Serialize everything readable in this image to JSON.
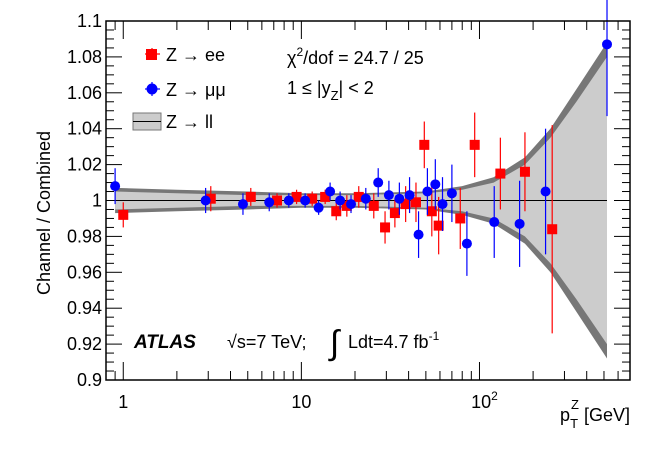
{
  "chart_data": {
    "type": "scatter",
    "title": "",
    "xlabel": "p_T^Z [GeV]",
    "xlabel_parts": {
      "base": "p",
      "sub": "T",
      "sup": "Z",
      "unit": "[GeV]"
    },
    "ylabel": "Channel / Combined",
    "xscale": "log",
    "xlim": [
      0.8,
      700
    ],
    "ylim": [
      0.9,
      1.1
    ],
    "yticks": [
      0.9,
      0.92,
      0.94,
      0.96,
      0.98,
      1,
      1.02,
      1.04,
      1.06,
      1.08,
      1.1
    ],
    "ytick_labels": [
      "0.9",
      "0.92",
      "0.94",
      "0.96",
      "0.98",
      "1",
      "1.02",
      "1.04",
      "1.06",
      "1.08",
      "1.1"
    ],
    "xticks_major": [
      1,
      10,
      100
    ],
    "xtick_labels": [
      "1",
      "10",
      "10"
    ],
    "xtick_label_exponents": [
      "",
      "",
      "2"
    ],
    "xticks_minor": [
      0.9,
      2,
      3,
      4,
      5,
      6,
      7,
      8,
      9,
      20,
      30,
      40,
      50,
      60,
      70,
      80,
      90,
      200,
      300,
      400,
      500,
      600
    ],
    "series": [
      {
        "name": "Z → ee",
        "marker": "square",
        "color": "#ff0000",
        "points": [
          {
            "x": 1.0,
            "y": 0.992,
            "err": 0.007
          },
          {
            "x": 3.1,
            "y": 1.001,
            "err": 0.007
          },
          {
            "x": 5.2,
            "y": 1.002,
            "err": 0.005
          },
          {
            "x": 7.3,
            "y": 1.0,
            "err": 0.004
          },
          {
            "x": 9.4,
            "y": 1.002,
            "err": 0.004
          },
          {
            "x": 11.5,
            "y": 1.001,
            "err": 0.004
          },
          {
            "x": 13.6,
            "y": 1.002,
            "err": 0.004
          },
          {
            "x": 15.7,
            "y": 0.994,
            "err": 0.005
          },
          {
            "x": 18.0,
            "y": 0.997,
            "err": 0.006
          },
          {
            "x": 21.0,
            "y": 1.002,
            "err": 0.006
          },
          {
            "x": 25.5,
            "y": 0.997,
            "err": 0.007
          },
          {
            "x": 29.5,
            "y": 0.985,
            "err": 0.009
          },
          {
            "x": 33.5,
            "y": 0.993,
            "err": 0.008
          },
          {
            "x": 38.5,
            "y": 0.998,
            "err": 0.01
          },
          {
            "x": 44.0,
            "y": 0.999,
            "err": 0.011
          },
          {
            "x": 49.0,
            "y": 1.031,
            "err": 0.013
          },
          {
            "x": 54.0,
            "y": 0.994,
            "err": 0.014
          },
          {
            "x": 59.0,
            "y": 0.986,
            "err": 0.016
          },
          {
            "x": 78.0,
            "y": 0.99,
            "err": 0.017
          },
          {
            "x": 94.0,
            "y": 1.031,
            "err": 0.018
          },
          {
            "x": 131.0,
            "y": 1.015,
            "err": 0.02
          },
          {
            "x": 180.0,
            "y": 1.016,
            "err": 0.022
          },
          {
            "x": 256.0,
            "y": 0.984,
            "err": 0.058
          }
        ]
      },
      {
        "name": "Z → μμ",
        "marker": "circle",
        "color": "#0000ff",
        "points": [
          {
            "x": 0.9,
            "y": 1.008,
            "err": 0.01
          },
          {
            "x": 2.9,
            "y": 1.0,
            "err": 0.007
          },
          {
            "x": 4.7,
            "y": 0.998,
            "err": 0.006
          },
          {
            "x": 6.6,
            "y": 0.999,
            "err": 0.005
          },
          {
            "x": 8.5,
            "y": 1.0,
            "err": 0.004
          },
          {
            "x": 10.5,
            "y": 1.0,
            "err": 0.004
          },
          {
            "x": 12.5,
            "y": 0.996,
            "err": 0.004
          },
          {
            "x": 14.5,
            "y": 1.005,
            "err": 0.005
          },
          {
            "x": 16.5,
            "y": 1.0,
            "err": 0.005
          },
          {
            "x": 19.0,
            "y": 0.998,
            "err": 0.005
          },
          {
            "x": 23.0,
            "y": 1.001,
            "err": 0.006
          },
          {
            "x": 27.0,
            "y": 1.01,
            "err": 0.008
          },
          {
            "x": 31.0,
            "y": 1.003,
            "err": 0.008
          },
          {
            "x": 35.5,
            "y": 1.001,
            "err": 0.009
          },
          {
            "x": 40.5,
            "y": 1.003,
            "err": 0.01
          },
          {
            "x": 45.5,
            "y": 0.981,
            "err": 0.013
          },
          {
            "x": 51.0,
            "y": 1.005,
            "err": 0.013
          },
          {
            "x": 56.5,
            "y": 1.009,
            "err": 0.014
          },
          {
            "x": 62.0,
            "y": 0.998,
            "err": 0.015
          },
          {
            "x": 70.0,
            "y": 1.004,
            "err": 0.016
          },
          {
            "x": 85.0,
            "y": 0.976,
            "err": 0.018
          },
          {
            "x": 121.0,
            "y": 0.988,
            "err": 0.02
          },
          {
            "x": 168.0,
            "y": 0.987,
            "err": 0.024
          },
          {
            "x": 235.0,
            "y": 1.005,
            "err": 0.035
          },
          {
            "x": 520.0,
            "y": 1.087,
            "err": 0.04
          }
        ]
      }
    ],
    "combined_band": {
      "name": "Z → ll",
      "line_value": 1.0,
      "x": [
        0.9,
        2,
        5,
        10,
        20,
        50,
        80,
        120,
        180,
        250,
        350,
        520
      ],
      "inner_half_width": [
        0.005,
        0.004,
        0.003,
        0.003,
        0.003,
        0.004,
        0.006,
        0.01,
        0.02,
        0.035,
        0.055,
        0.08
      ],
      "outer_half_width": [
        0.007,
        0.006,
        0.005,
        0.004,
        0.004,
        0.005,
        0.008,
        0.013,
        0.024,
        0.04,
        0.062,
        0.088
      ]
    },
    "legend": {
      "position": "top-left",
      "entries": [
        "Z → ee",
        "Z → μμ",
        "Z → ll"
      ]
    },
    "annotations": {
      "chi2_prefix": "χ",
      "chi2_sup": "2",
      "chi2_rest": "/dof = 24.7 / 25",
      "rapidity_prefix": "1 ≤ |y",
      "rapidity_sub": "Z",
      "rapidity_rest": "| < 2",
      "atlas_label": "ATLAS",
      "sqrt_symbol": "√",
      "energy_text": "s=7 TeV;",
      "integral_symbol": "∫",
      "lumi_text": "Ldt=4.7 fb",
      "lumi_sup": "-1"
    }
  }
}
